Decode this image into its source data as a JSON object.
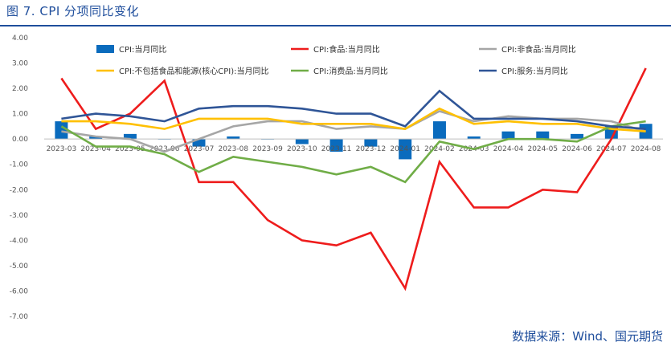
{
  "header": {
    "title": "图 7. CPI 分项同比变化",
    "source": "数据来源：Wind、国元期货"
  },
  "chart_data": {
    "type": "bar",
    "categories": [
      "2023-03",
      "2023-04",
      "2023-05",
      "2023-06",
      "2023-07",
      "2023-08",
      "2023-09",
      "2023-10",
      "2023-11",
      "2023-12",
      "2024-01",
      "2024-02",
      "2024-03",
      "2024-04",
      "2024-05",
      "2024-06",
      "2024-07",
      "2024-08"
    ],
    "ylim": [
      -7,
      4
    ],
    "yticks": [
      "4.00",
      "3.00",
      "2.00",
      "1.00",
      "0.00",
      "-1.00",
      "-2.00",
      "-3.00",
      "-4.00",
      "-5.00",
      "-6.00",
      "-7.00"
    ],
    "legend_position": "top",
    "series": [
      {
        "name": "CPI:当月同比",
        "type": "bar",
        "color": "#0a6bbd",
        "values": [
          0.7,
          0.1,
          0.2,
          0.0,
          -0.3,
          0.1,
          0.0,
          -0.2,
          -0.5,
          -0.3,
          -0.8,
          0.7,
          0.1,
          0.3,
          0.3,
          0.2,
          0.5,
          0.6
        ]
      },
      {
        "name": "CPI:食品:当月同比",
        "type": "line",
        "color": "#ee1c1c",
        "values": [
          2.4,
          0.4,
          1.0,
          2.3,
          -1.7,
          -1.7,
          -3.2,
          -4.0,
          -4.2,
          -3.7,
          -5.9,
          -0.9,
          -2.7,
          -2.7,
          -2.0,
          -2.1,
          0.0,
          2.8
        ]
      },
      {
        "name": "CPI:非食品:当月同比",
        "type": "line",
        "color": "#a6a6a6",
        "values": [
          0.3,
          0.1,
          0.0,
          -0.5,
          0.0,
          0.5,
          0.7,
          0.7,
          0.4,
          0.5,
          0.4,
          1.1,
          0.7,
          0.9,
          0.8,
          0.8,
          0.7,
          0.3
        ]
      },
      {
        "name": "CPI:不包括食品和能源(核心CPI):当月同比",
        "type": "line",
        "color": "#ffc000",
        "values": [
          0.7,
          0.7,
          0.6,
          0.4,
          0.8,
          0.8,
          0.8,
          0.6,
          0.6,
          0.6,
          0.4,
          1.2,
          0.6,
          0.7,
          0.6,
          0.6,
          0.4,
          0.3
        ]
      },
      {
        "name": "CPI:消费品:当月同比",
        "type": "line",
        "color": "#70ad47",
        "values": [
          0.5,
          -0.3,
          -0.3,
          -0.6,
          -1.3,
          -0.7,
          -0.9,
          -1.1,
          -1.4,
          -1.1,
          -1.7,
          -0.1,
          -0.4,
          0.0,
          0.0,
          -0.1,
          0.5,
          0.7
        ]
      },
      {
        "name": "CPI:服务:当月同比",
        "type": "line",
        "color": "#2f5597",
        "values": [
          0.8,
          1.0,
          0.9,
          0.7,
          1.2,
          1.3,
          1.3,
          1.2,
          1.0,
          1.0,
          0.5,
          1.9,
          0.8,
          0.8,
          0.8,
          0.7,
          0.5,
          0.4
        ]
      }
    ]
  }
}
